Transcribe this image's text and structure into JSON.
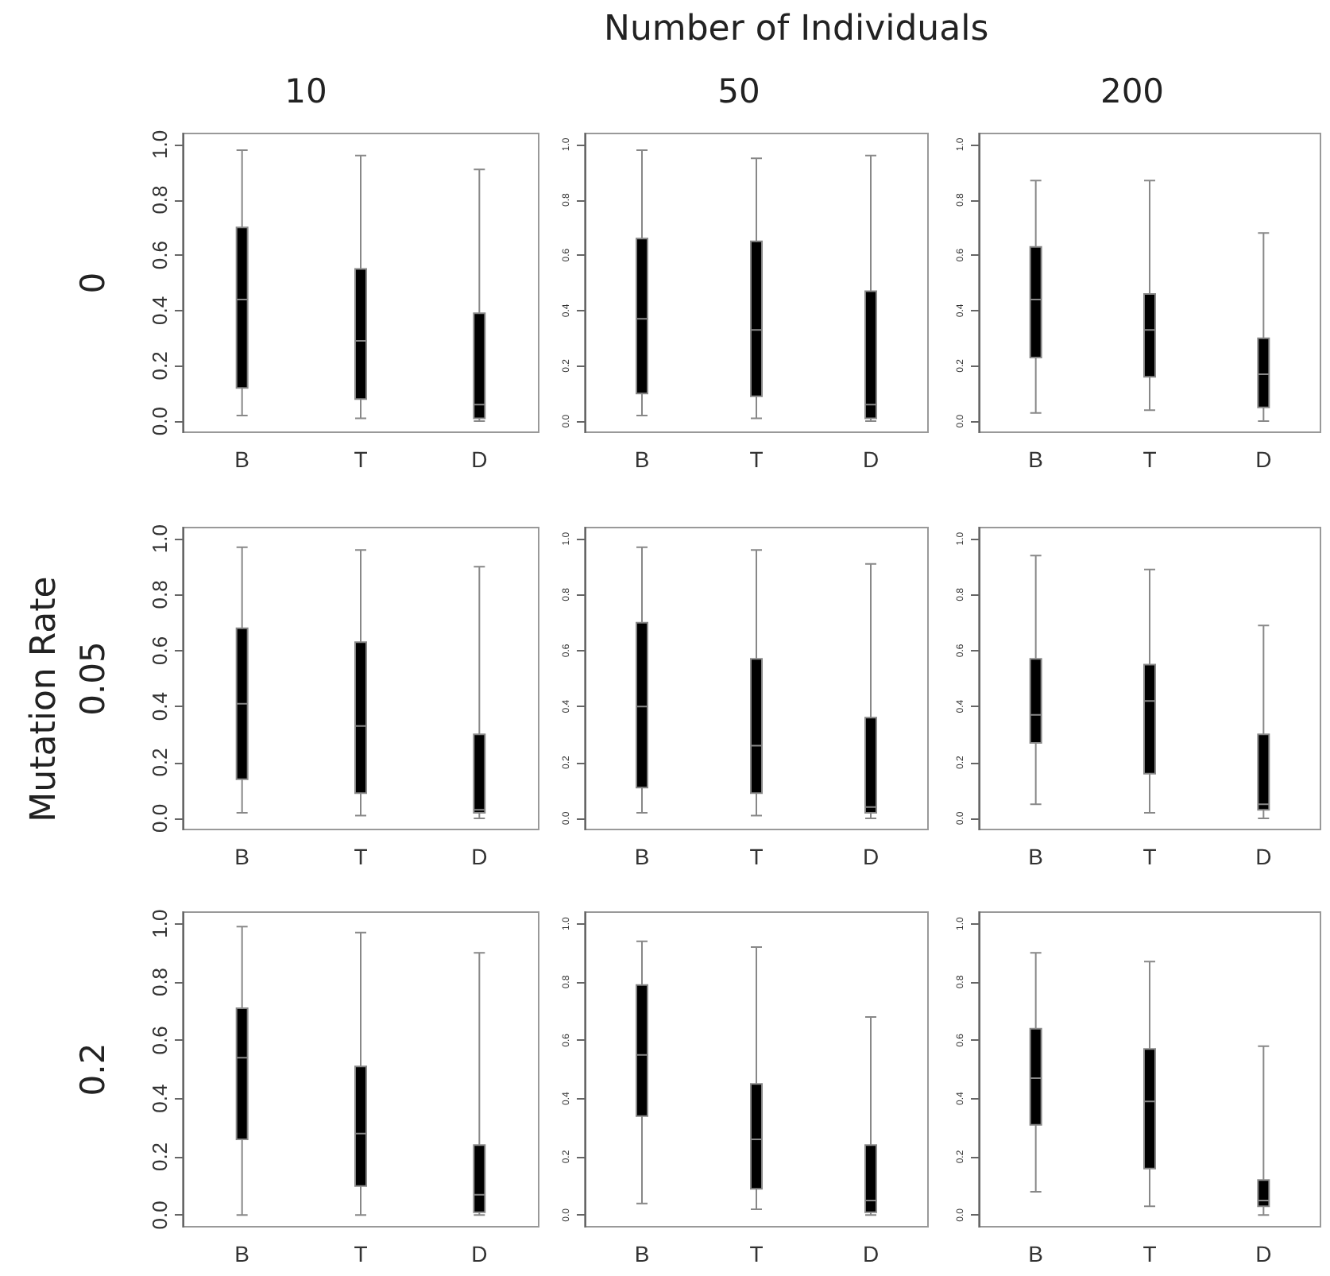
{
  "chart_data": [
    {
      "type": "box",
      "title": "10",
      "ylabel": "0",
      "annotations": [
        "Number of Individuals"
      ],
      "categories": [
        "B",
        "T",
        "D"
      ],
      "ylim": [
        -0.04,
        1.04
      ],
      "yticks": [
        {
          "value": 0,
          "label": "0.0"
        },
        {
          "value": 0.2,
          "label": "0.2"
        },
        {
          "value": 0.4,
          "label": "0.4"
        },
        {
          "value": 0.6,
          "label": "0.6"
        },
        {
          "value": 0.8,
          "label": "0.8"
        },
        {
          "value": 1,
          "label": "1.0"
        }
      ],
      "grid": false,
      "series": [
        {
          "color": "#000000",
          "boxes": [
            {
              "low": 0.02,
              "q1": 0.12,
              "median": 0.44,
              "q3": 0.7,
              "high": 0.98
            },
            {
              "low": 0.01,
              "q1": 0.08,
              "median": 0.29,
              "q3": 0.55,
              "high": 0.96
            },
            {
              "low": 0,
              "q1": 0.01,
              "median": 0.06,
              "q3": 0.39,
              "high": 0.91
            }
          ]
        }
      ]
    },
    {
      "type": "box",
      "title": "50",
      "categories": [
        "B",
        "T",
        "D"
      ],
      "ylim": [
        -0.04,
        1.04
      ],
      "yticks": [
        {
          "value": 0,
          "label": "0.0"
        },
        {
          "value": 0.2,
          "label": "0.2"
        },
        {
          "value": 0.4,
          "label": "0.4"
        },
        {
          "value": 0.6,
          "label": "0.6"
        },
        {
          "value": 0.8,
          "label": "0.8"
        },
        {
          "value": 1,
          "label": "1.0"
        }
      ],
      "grid": false,
      "series": [
        {
          "color": "#000000",
          "boxes": [
            {
              "low": 0.02,
              "q1": 0.1,
              "median": 0.37,
              "q3": 0.66,
              "high": 0.98
            },
            {
              "low": 0.01,
              "q1": 0.09,
              "median": 0.33,
              "q3": 0.65,
              "high": 0.95
            },
            {
              "low": 0,
              "q1": 0.01,
              "median": 0.06,
              "q3": 0.47,
              "high": 0.96
            }
          ]
        }
      ]
    },
    {
      "type": "box",
      "title": "200",
      "categories": [
        "B",
        "T",
        "D"
      ],
      "ylim": [
        -0.04,
        1.04
      ],
      "yticks": [
        {
          "value": 0,
          "label": "0.0"
        },
        {
          "value": 0.2,
          "label": "0.2"
        },
        {
          "value": 0.4,
          "label": "0.4"
        },
        {
          "value": 0.6,
          "label": "0.6"
        },
        {
          "value": 0.8,
          "label": "0.8"
        },
        {
          "value": 1,
          "label": "1.0"
        }
      ],
      "grid": false,
      "series": [
        {
          "color": "#000000",
          "boxes": [
            {
              "low": 0.03,
              "q1": 0.23,
              "median": 0.44,
              "q3": 0.63,
              "high": 0.87
            },
            {
              "low": 0.04,
              "q1": 0.16,
              "median": 0.33,
              "q3": 0.46,
              "high": 0.87
            },
            {
              "low": 0,
              "q1": 0.05,
              "median": 0.17,
              "q3": 0.3,
              "high": 0.68
            }
          ]
        }
      ]
    },
    {
      "type": "box",
      "ylabel": "0.05",
      "annotations": [
        "Mutation Rate"
      ],
      "categories": [
        "B",
        "T",
        "D"
      ],
      "ylim": [
        -0.04,
        1.04
      ],
      "yticks": [
        {
          "value": 0,
          "label": "0.0"
        },
        {
          "value": 0.2,
          "label": "0.2"
        },
        {
          "value": 0.4,
          "label": "0.4"
        },
        {
          "value": 0.6,
          "label": "0.6"
        },
        {
          "value": 0.8,
          "label": "0.8"
        },
        {
          "value": 1,
          "label": "1.0"
        }
      ],
      "grid": false,
      "series": [
        {
          "color": "#000000",
          "boxes": [
            {
              "low": 0.02,
              "q1": 0.14,
              "median": 0.41,
              "q3": 0.68,
              "high": 0.97
            },
            {
              "low": 0.01,
              "q1": 0.09,
              "median": 0.33,
              "q3": 0.63,
              "high": 0.96
            },
            {
              "low": 0,
              "q1": 0.02,
              "median": 0.03,
              "q3": 0.3,
              "high": 0.9
            }
          ]
        }
      ]
    },
    {
      "type": "box",
      "categories": [
        "B",
        "T",
        "D"
      ],
      "ylim": [
        -0.04,
        1.04
      ],
      "yticks": [
        {
          "value": 0,
          "label": "0.0"
        },
        {
          "value": 0.2,
          "label": "0.2"
        },
        {
          "value": 0.4,
          "label": "0.4"
        },
        {
          "value": 0.6,
          "label": "0.6"
        },
        {
          "value": 0.8,
          "label": "0.8"
        },
        {
          "value": 1,
          "label": "1.0"
        }
      ],
      "grid": false,
      "series": [
        {
          "color": "#000000",
          "boxes": [
            {
              "low": 0.02,
              "q1": 0.11,
              "median": 0.4,
              "q3": 0.7,
              "high": 0.97
            },
            {
              "low": 0.01,
              "q1": 0.09,
              "median": 0.26,
              "q3": 0.57,
              "high": 0.96
            },
            {
              "low": 0,
              "q1": 0.02,
              "median": 0.04,
              "q3": 0.36,
              "high": 0.91
            }
          ]
        }
      ]
    },
    {
      "type": "box",
      "categories": [
        "B",
        "T",
        "D"
      ],
      "ylim": [
        -0.04,
        1.04
      ],
      "yticks": [
        {
          "value": 0,
          "label": "0.0"
        },
        {
          "value": 0.2,
          "label": "0.2"
        },
        {
          "value": 0.4,
          "label": "0.4"
        },
        {
          "value": 0.6,
          "label": "0.6"
        },
        {
          "value": 0.8,
          "label": "0.8"
        },
        {
          "value": 1,
          "label": "1.0"
        }
      ],
      "grid": false,
      "series": [
        {
          "color": "#000000",
          "boxes": [
            {
              "low": 0.05,
              "q1": 0.27,
              "median": 0.37,
              "q3": 0.57,
              "high": 0.94
            },
            {
              "low": 0.02,
              "q1": 0.16,
              "median": 0.42,
              "q3": 0.55,
              "high": 0.89
            },
            {
              "low": 0,
              "q1": 0.03,
              "median": 0.05,
              "q3": 0.3,
              "high": 0.69
            }
          ]
        }
      ]
    },
    {
      "type": "box",
      "ylabel": "0.2",
      "categories": [
        "B",
        "T",
        "D"
      ],
      "ylim": [
        -0.04,
        1.04
      ],
      "yticks": [
        {
          "value": 0,
          "label": "0.0"
        },
        {
          "value": 0.2,
          "label": "0.2"
        },
        {
          "value": 0.4,
          "label": "0.4"
        },
        {
          "value": 0.6,
          "label": "0.6"
        },
        {
          "value": 0.8,
          "label": "0.8"
        },
        {
          "value": 1,
          "label": "1.0"
        }
      ],
      "grid": false,
      "series": [
        {
          "color": "#000000",
          "boxes": [
            {
              "low": 0,
              "q1": 0.26,
              "median": 0.54,
              "q3": 0.71,
              "high": 0.99
            },
            {
              "low": 0,
              "q1": 0.1,
              "median": 0.28,
              "q3": 0.51,
              "high": 0.97
            },
            {
              "low": 0,
              "q1": 0.01,
              "median": 0.07,
              "q3": 0.24,
              "high": 0.9
            }
          ]
        }
      ]
    },
    {
      "type": "box",
      "categories": [
        "B",
        "T",
        "D"
      ],
      "ylim": [
        -0.04,
        1.04
      ],
      "yticks": [
        {
          "value": 0,
          "label": "0.0"
        },
        {
          "value": 0.2,
          "label": "0.2"
        },
        {
          "value": 0.4,
          "label": "0.4"
        },
        {
          "value": 0.6,
          "label": "0.6"
        },
        {
          "value": 0.8,
          "label": "0.8"
        },
        {
          "value": 1,
          "label": "1.0"
        }
      ],
      "grid": false,
      "series": [
        {
          "color": "#000000",
          "boxes": [
            {
              "low": 0.04,
              "q1": 0.34,
              "median": 0.55,
              "q3": 0.79,
              "high": 0.94
            },
            {
              "low": 0.02,
              "q1": 0.09,
              "median": 0.26,
              "q3": 0.45,
              "high": 0.92
            },
            {
              "low": 0,
              "q1": 0.01,
              "median": 0.05,
              "q3": 0.24,
              "high": 0.68
            }
          ]
        }
      ]
    },
    {
      "type": "box",
      "categories": [
        "B",
        "T",
        "D"
      ],
      "ylim": [
        -0.04,
        1.04
      ],
      "yticks": [
        {
          "value": 0,
          "label": "0.0"
        },
        {
          "value": 0.2,
          "label": "0.2"
        },
        {
          "value": 0.4,
          "label": "0.4"
        },
        {
          "value": 0.6,
          "label": "0.6"
        },
        {
          "value": 0.8,
          "label": "0.8"
        },
        {
          "value": 1,
          "label": "1.0"
        }
      ],
      "grid": false,
      "series": [
        {
          "color": "#000000",
          "boxes": [
            {
              "low": 0.08,
              "q1": 0.31,
              "median": 0.47,
              "q3": 0.64,
              "high": 0.9
            },
            {
              "low": 0.03,
              "q1": 0.16,
              "median": 0.39,
              "q3": 0.57,
              "high": 0.87
            },
            {
              "low": 0,
              "q1": 0.03,
              "median": 0.05,
              "q3": 0.12,
              "high": 0.58
            }
          ]
        }
      ]
    }
  ]
}
